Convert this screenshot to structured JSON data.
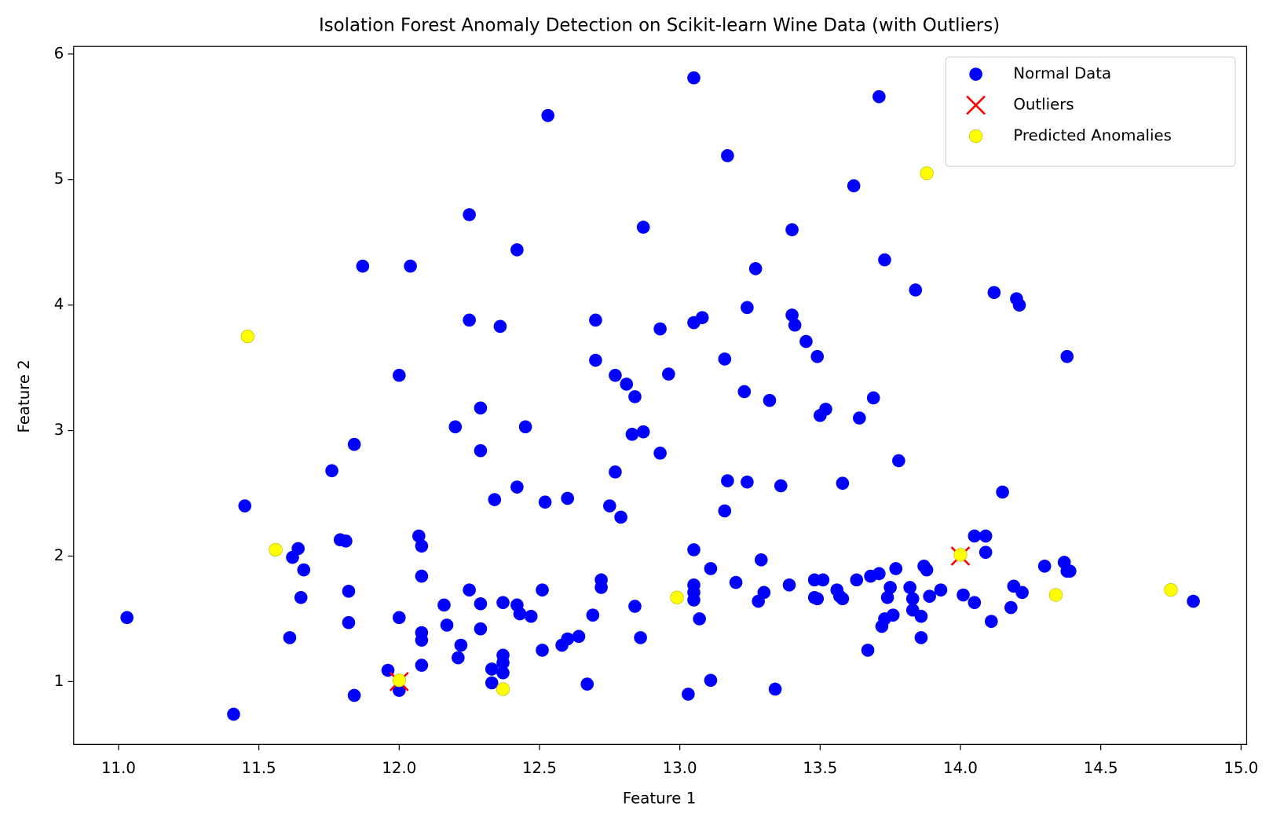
{
  "chart_data": {
    "type": "scatter",
    "title": "Isolation Forest Anomaly Detection on Scikit-learn Wine Data (with Outliers)",
    "x_label": "Feature 1",
    "y_label": "Feature 2",
    "xlim": [
      10.84,
      15.02
    ],
    "ylim": [
      0.5,
      6.06
    ],
    "xticks": [
      {
        "value": 11,
        "label": "11.0"
      },
      {
        "value": 11.5,
        "label": "11.5"
      },
      {
        "value": 12,
        "label": "12.0"
      },
      {
        "value": 12.5,
        "label": "12.5"
      },
      {
        "value": 13,
        "label": "13.0"
      },
      {
        "value": 13.5,
        "label": "13.5"
      },
      {
        "value": 14,
        "label": "14.0"
      },
      {
        "value": 14.5,
        "label": "14.5"
      },
      {
        "value": 15,
        "label": "15.0"
      }
    ],
    "yticks": [
      1,
      2,
      3,
      4,
      5,
      6
    ],
    "grid": false,
    "legend": "upper right",
    "series": [
      {
        "name": "Normal Data",
        "color": "#0000ff",
        "marker": "circle",
        "x": [
          11.03,
          11.41,
          11.45,
          11.76,
          11.84,
          11.87,
          11.62,
          11.64,
          11.66,
          11.65,
          11.61,
          11.79,
          11.81,
          11.82,
          11.82,
          11.84,
          12.0,
          12.04,
          12.07,
          12.08,
          12.08,
          12.0,
          12.08,
          12.08,
          12.08,
          11.96,
          12.0,
          12.25,
          12.25,
          12.36,
          12.42,
          12.2,
          12.29,
          12.29,
          12.45,
          12.34,
          12.42,
          12.52,
          12.6,
          12.53,
          12.25,
          12.29,
          12.16,
          12.17,
          12.22,
          12.21,
          12.29,
          12.37,
          12.42,
          12.43,
          12.47,
          12.51,
          12.51,
          12.33,
          12.37,
          12.37,
          12.37,
          12.33,
          12.58,
          12.6,
          12.64,
          12.67,
          12.69,
          12.72,
          12.72,
          12.7,
          12.7,
          12.77,
          12.81,
          12.84,
          12.83,
          12.87,
          12.77,
          12.75,
          12.79,
          12.87,
          12.93,
          12.96,
          12.93,
          12.84,
          12.86,
          13.05,
          13.05,
          13.08,
          13.16,
          13.17,
          13.16,
          13.24,
          13.23,
          13.24,
          13.27,
          13.17,
          13.05,
          13.05,
          13.05,
          13.05,
          13.11,
          13.07,
          13.03,
          13.11,
          13.2,
          13.28,
          13.29,
          13.3,
          13.32,
          13.36,
          13.34,
          13.39,
          13.4,
          13.4,
          13.41,
          13.45,
          13.49,
          13.5,
          13.52,
          13.48,
          13.51,
          13.48,
          13.49,
          13.56,
          13.57,
          13.58,
          13.58,
          13.62,
          13.64,
          13.63,
          13.68,
          13.71,
          13.67,
          13.69,
          13.71,
          13.73,
          13.75,
          13.74,
          13.73,
          13.72,
          13.76,
          13.77,
          13.78,
          13.82,
          13.83,
          13.83,
          13.84,
          13.87,
          13.88,
          13.86,
          13.86,
          13.89,
          13.93,
          14.01,
          14.05,
          14.09,
          14.09,
          14.05,
          14.11,
          14.12,
          14.2,
          14.21,
          14.15,
          14.19,
          14.22,
          14.18,
          14.3,
          14.37,
          14.38,
          14.38,
          14.39,
          14.83
        ],
        "values": [
          1.51,
          0.74,
          2.4,
          2.68,
          2.89,
          4.31,
          1.99,
          2.06,
          1.89,
          1.67,
          1.35,
          2.13,
          2.12,
          1.72,
          1.47,
          0.89,
          3.44,
          4.31,
          2.16,
          2.08,
          1.84,
          1.51,
          1.39,
          1.33,
          1.13,
          1.09,
          0.93,
          4.72,
          3.88,
          3.83,
          4.44,
          3.03,
          3.18,
          2.84,
          3.03,
          2.45,
          2.55,
          2.43,
          2.46,
          5.51,
          1.73,
          1.62,
          1.61,
          1.45,
          1.29,
          1.19,
          1.42,
          1.63,
          1.61,
          1.54,
          1.52,
          1.73,
          1.25,
          1.1,
          1.21,
          1.15,
          1.07,
          0.99,
          1.29,
          1.34,
          1.36,
          0.98,
          1.53,
          1.81,
          1.75,
          3.88,
          3.56,
          3.44,
          3.37,
          3.27,
          2.97,
          2.99,
          2.67,
          2.4,
          2.31,
          4.62,
          3.81,
          3.45,
          2.82,
          1.6,
          1.35,
          5.81,
          3.86,
          3.9,
          3.57,
          2.6,
          2.36,
          2.59,
          3.31,
          3.98,
          4.29,
          5.19,
          2.05,
          1.77,
          1.71,
          1.65,
          1.9,
          1.5,
          0.9,
          1.01,
          1.79,
          1.64,
          1.97,
          1.71,
          3.24,
          2.56,
          0.94,
          1.77,
          4.6,
          3.92,
          3.84,
          3.71,
          3.59,
          3.12,
          3.17,
          1.81,
          1.81,
          1.67,
          1.66,
          1.73,
          1.68,
          1.66,
          2.58,
          4.95,
          3.1,
          1.81,
          1.84,
          1.86,
          1.25,
          3.26,
          5.66,
          4.36,
          1.75,
          1.67,
          1.5,
          1.44,
          1.53,
          1.9,
          2.76,
          1.75,
          1.66,
          1.57,
          4.12,
          1.92,
          1.89,
          1.52,
          1.35,
          1.68,
          1.73,
          1.69,
          2.16,
          2.16,
          2.03,
          1.63,
          1.48,
          4.1,
          4.05,
          4.0,
          2.51,
          1.76,
          1.71,
          1.59,
          1.92,
          1.95,
          3.59,
          1.88,
          1.88,
          1.64
        ]
      },
      {
        "name": "Outliers",
        "color": "#ff0000",
        "marker": "x",
        "x": [
          12,
          14
        ],
        "values": [
          1,
          2
        ]
      },
      {
        "name": "Predicted Anomalies",
        "color": "#ffff00",
        "marker": "circle",
        "x": [
          11.46,
          11.56,
          12.0,
          12.37,
          12.99,
          13.88,
          14.0,
          14.34,
          14.75
        ],
        "values": [
          3.75,
          2.05,
          1.01,
          0.94,
          1.67,
          5.05,
          2.01,
          1.69,
          1.73
        ]
      }
    ]
  }
}
